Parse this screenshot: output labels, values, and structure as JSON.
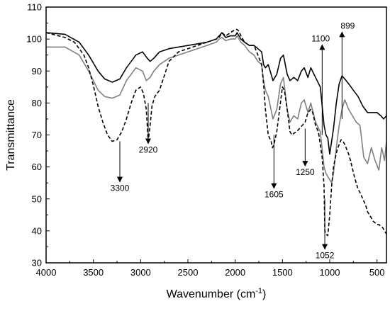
{
  "chart_data": {
    "type": "line",
    "title": "",
    "xlabel": "Wavenumber (cm",
    "xlabel_sup": "-1",
    "xlabel_close": ")",
    "ylabel": "Transmittance",
    "xlim": [
      4000,
      400
    ],
    "ylim": [
      30,
      110
    ],
    "x_reversed": true,
    "x_ticks": [
      4000,
      3500,
      3000,
      2500,
      2000,
      1500,
      1000,
      500
    ],
    "y_ticks": [
      30,
      40,
      50,
      60,
      70,
      80,
      90,
      100,
      110
    ],
    "x_tick_labels": [
      "4000",
      "3500",
      "3000",
      "2500",
      "2000",
      "1500",
      "1000",
      "500"
    ],
    "y_tick_labels": [
      "30",
      "40",
      "50",
      "60",
      "70",
      "80",
      "90",
      "100",
      "110"
    ],
    "grid": false,
    "legend": "none",
    "series": [
      {
        "color": "#000000",
        "dash": "solid",
        "x": [
          4000,
          3800,
          3650,
          3550,
          3450,
          3380,
          3300,
          3220,
          3150,
          3050,
          2980,
          2930,
          2900,
          2860,
          2800,
          2700,
          2600,
          2500,
          2400,
          2300,
          2250,
          2200,
          2170,
          2140,
          2100,
          2050,
          2000,
          1980,
          1940,
          1900,
          1850,
          1800,
          1760,
          1720,
          1700,
          1680,
          1650,
          1600,
          1560,
          1520,
          1490,
          1450,
          1420,
          1380,
          1340,
          1300,
          1270,
          1230,
          1200,
          1150,
          1100,
          1060,
          1040,
          1020,
          1000,
          960,
          930,
          900,
          870,
          840,
          800,
          750,
          700,
          650,
          600,
          550,
          500,
          460,
          430,
          400
        ],
        "y": [
          102,
          101.5,
          99,
          95,
          90,
          87.5,
          86.5,
          87.5,
          91,
          95,
          96,
          94,
          93,
          94,
          96,
          97,
          97.5,
          98,
          98.5,
          99,
          99.5,
          100,
          101,
          102,
          100.5,
          101,
          101,
          102,
          100,
          99,
          98,
          98,
          97,
          96,
          92,
          91,
          92,
          87,
          89,
          94,
          95,
          89,
          87,
          88,
          87,
          90,
          91,
          88,
          91,
          88,
          85,
          73,
          70,
          69,
          64,
          72,
          80,
          86,
          88.5,
          87.5,
          86,
          84,
          82,
          79,
          77,
          77,
          77,
          76,
          75,
          76
        ]
      },
      {
        "color": "#808080",
        "dash": "solid",
        "x": [
          4000,
          3800,
          3650,
          3550,
          3450,
          3380,
          3300,
          3220,
          3150,
          3050,
          2980,
          2940,
          2900,
          2860,
          2800,
          2700,
          2600,
          2500,
          2400,
          2300,
          2250,
          2200,
          2170,
          2140,
          2100,
          2050,
          2000,
          1980,
          1940,
          1900,
          1850,
          1800,
          1760,
          1720,
          1700,
          1680,
          1650,
          1600,
          1560,
          1520,
          1490,
          1450,
          1420,
          1380,
          1340,
          1300,
          1270,
          1230,
          1200,
          1150,
          1100,
          1060,
          1040,
          1020,
          1000,
          980,
          960,
          930,
          900,
          870,
          840,
          800,
          760,
          720,
          680,
          640,
          620,
          600,
          560,
          520,
          480,
          450,
          420,
          400
        ],
        "y": [
          97.5,
          97.5,
          95,
          90,
          84,
          82,
          81.5,
          82.5,
          87,
          91,
          90,
          87,
          88,
          90,
          92,
          94,
          95,
          96,
          97,
          98,
          98.5,
          99,
          100,
          100.5,
          99.5,
          100,
          100,
          101,
          99,
          98,
          96,
          95,
          93,
          92,
          87,
          84,
          82,
          75,
          78,
          86,
          88,
          78,
          74,
          76,
          75,
          80,
          81,
          77,
          80,
          74,
          71,
          60,
          58,
          57,
          56,
          55,
          58,
          66,
          73,
          78,
          81,
          78,
          76,
          74,
          73,
          63,
          62,
          61,
          66,
          62,
          59,
          66,
          62,
          68
        ]
      },
      {
        "color": "#000000",
        "dash": "dashed",
        "x": [
          4000,
          3800,
          3700,
          3600,
          3550,
          3500,
          3450,
          3400,
          3350,
          3300,
          3250,
          3200,
          3150,
          3100,
          3050,
          3000,
          2970,
          2940,
          2920,
          2900,
          2880,
          2850,
          2800,
          2700,
          2600,
          2500,
          2400,
          2300,
          2250,
          2200,
          2170,
          2140,
          2100,
          2050,
          2000,
          1980,
          1960,
          1940,
          1900,
          1850,
          1800,
          1760,
          1720,
          1700,
          1680,
          1650,
          1620,
          1605,
          1590,
          1560,
          1530,
          1500,
          1480,
          1450,
          1420,
          1400,
          1380,
          1350,
          1320,
          1290,
          1260,
          1230,
          1200,
          1180,
          1150,
          1120,
          1100,
          1080,
          1060,
          1052,
          1040,
          1020,
          1000,
          980,
          960,
          940,
          920,
          900,
          880,
          860,
          840,
          820,
          800,
          780,
          760,
          740,
          720,
          700,
          680,
          650,
          620,
          600,
          580,
          560,
          540,
          520,
          500,
          480,
          460,
          440,
          420,
          400
        ],
        "y": [
          102,
          100.5,
          99,
          95,
          91,
          85.5,
          79,
          74,
          70,
          68,
          68.5,
          71,
          75,
          80,
          84,
          85,
          83,
          78,
          68,
          73,
          79,
          82,
          84,
          93,
          96,
          97,
          98,
          99,
          99.5,
          100,
          100.5,
          102,
          101,
          102,
          103,
          103,
          102.5,
          101,
          99,
          98,
          98,
          95,
          92,
          86,
          78,
          70,
          68,
          66,
          67,
          71,
          78,
          85,
          84,
          78,
          71,
          70,
          70.5,
          71,
          72,
          73,
          74,
          77,
          78,
          77,
          73,
          71,
          67,
          63,
          54,
          40,
          39,
          38.5,
          45,
          54,
          60,
          63,
          65.5,
          67,
          68.5,
          68,
          67,
          65.5,
          64,
          62,
          59.5,
          57,
          55,
          53,
          52,
          50,
          48,
          46,
          45,
          44,
          43,
          42.5,
          42,
          42,
          41.5,
          41,
          40,
          39
        ]
      }
    ],
    "annotations": [
      {
        "label": "3300",
        "arrow_x": 3220,
        "arrow_from_y": 68,
        "arrow_to_y": 56,
        "direction": "down"
      },
      {
        "label": "2920",
        "arrow_x": 2920,
        "arrow_from_y": 80,
        "arrow_to_y": 68,
        "direction": "down"
      },
      {
        "label": "1605",
        "arrow_x": 1590,
        "arrow_from_y": 70,
        "arrow_to_y": 54,
        "direction": "down"
      },
      {
        "label": "1250",
        "arrow_x": 1260,
        "arrow_from_y": 72,
        "arrow_to_y": 61,
        "direction": "down"
      },
      {
        "label": "1100",
        "arrow_x": 1080,
        "arrow_from_y": 70,
        "arrow_to_y": 97.5,
        "direction": "up"
      },
      {
        "label": "899",
        "arrow_x": 870,
        "arrow_from_y": 75,
        "arrow_to_y": 101.5,
        "direction": "up"
      },
      {
        "label": "1052",
        "arrow_x": 1052,
        "arrow_from_y": 50,
        "arrow_to_y": 35,
        "direction": "down"
      }
    ]
  }
}
